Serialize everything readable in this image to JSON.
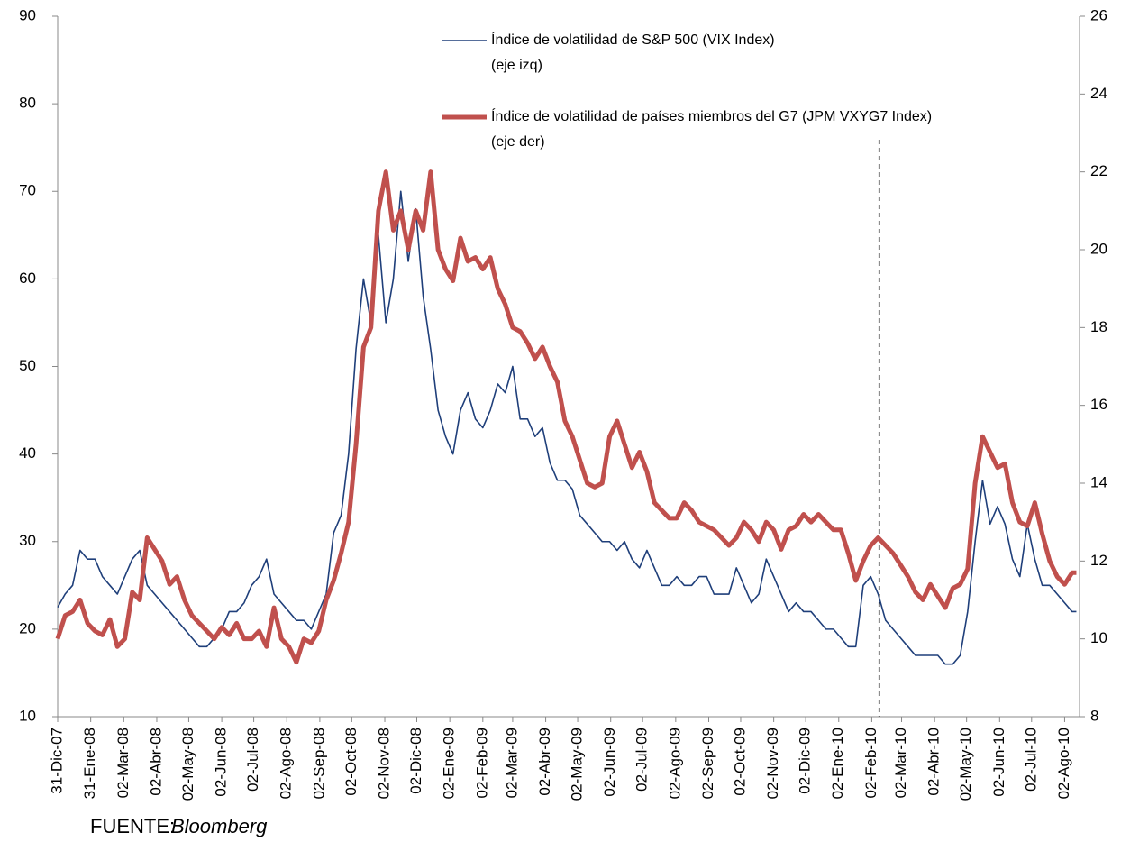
{
  "chart_data": {
    "type": "line",
    "x": [
      "2007-12-31",
      "2008-01-07",
      "2008-01-14",
      "2008-01-21",
      "2008-01-28",
      "2008-02-04",
      "2008-02-11",
      "2008-02-18",
      "2008-02-25",
      "2008-03-03",
      "2008-03-10",
      "2008-03-17",
      "2008-03-24",
      "2008-03-31",
      "2008-04-07",
      "2008-04-14",
      "2008-04-21",
      "2008-04-28",
      "2008-05-05",
      "2008-05-12",
      "2008-05-19",
      "2008-05-26",
      "2008-06-02",
      "2008-06-09",
      "2008-06-16",
      "2008-06-23",
      "2008-06-30",
      "2008-07-07",
      "2008-07-14",
      "2008-07-21",
      "2008-07-28",
      "2008-08-04",
      "2008-08-11",
      "2008-08-18",
      "2008-08-25",
      "2008-09-01",
      "2008-09-08",
      "2008-09-15",
      "2008-09-22",
      "2008-09-29",
      "2008-10-06",
      "2008-10-13",
      "2008-10-20",
      "2008-10-27",
      "2008-11-03",
      "2008-11-10",
      "2008-11-17",
      "2008-11-24",
      "2008-12-01",
      "2008-12-08",
      "2008-12-15",
      "2008-12-22",
      "2008-12-29",
      "2009-01-05",
      "2009-01-12",
      "2009-01-19",
      "2009-01-26",
      "2009-02-02",
      "2009-02-09",
      "2009-02-16",
      "2009-02-23",
      "2009-03-02",
      "2009-03-09",
      "2009-03-16",
      "2009-03-23",
      "2009-03-30",
      "2009-04-06",
      "2009-04-13",
      "2009-04-20",
      "2009-04-27",
      "2009-05-04",
      "2009-05-11",
      "2009-05-18",
      "2009-05-25",
      "2009-06-01",
      "2009-06-08",
      "2009-06-15",
      "2009-06-22",
      "2009-06-29",
      "2009-07-06",
      "2009-07-13",
      "2009-07-20",
      "2009-07-27",
      "2009-08-03",
      "2009-08-10",
      "2009-08-17",
      "2009-08-24",
      "2009-08-31",
      "2009-09-07",
      "2009-09-14",
      "2009-09-21",
      "2009-09-28",
      "2009-10-05",
      "2009-10-12",
      "2009-10-19",
      "2009-10-26",
      "2009-11-02",
      "2009-11-09",
      "2009-11-16",
      "2009-11-23",
      "2009-11-30",
      "2009-12-07",
      "2009-12-14",
      "2009-12-21",
      "2009-12-28",
      "2010-01-04",
      "2010-01-11",
      "2010-01-18",
      "2010-01-25",
      "2010-02-01",
      "2010-02-08",
      "2010-02-15",
      "2010-02-22",
      "2010-03-01",
      "2010-03-08",
      "2010-03-15",
      "2010-03-22",
      "2010-03-29",
      "2010-04-05",
      "2010-04-12",
      "2010-04-19",
      "2010-04-26",
      "2010-05-03",
      "2010-05-10",
      "2010-05-17",
      "2010-05-24",
      "2010-05-31",
      "2010-06-07",
      "2010-06-14",
      "2010-06-21",
      "2010-06-28",
      "2010-07-05",
      "2010-07-12",
      "2010-07-19",
      "2010-07-26",
      "2010-08-02",
      "2010-08-09",
      "2010-08-13"
    ],
    "series": [
      {
        "name": "Índice de volatilidad de S&P 500 (VIX Index)",
        "legend_note": "(eje izq)",
        "color": "#1f3f7a",
        "axis": "y",
        "values": [
          22.5,
          24,
          25,
          29,
          28,
          28,
          26,
          25,
          24,
          26,
          28,
          29,
          25,
          24,
          23,
          22,
          21,
          20,
          19,
          18,
          18,
          19,
          20,
          22,
          22,
          23,
          25,
          26,
          28,
          24,
          23,
          22,
          21,
          21,
          20,
          22,
          24,
          31,
          33,
          40,
          52,
          60,
          55,
          65,
          55,
          60,
          70,
          62,
          68,
          58,
          52,
          45,
          42,
          40,
          45,
          47,
          44,
          43,
          45,
          48,
          47,
          50,
          44,
          44,
          42,
          43,
          39,
          37,
          37,
          36,
          33,
          32,
          31,
          30,
          30,
          29,
          30,
          28,
          27,
          29,
          27,
          25,
          25,
          26,
          25,
          25,
          26,
          26,
          24,
          24,
          24,
          27,
          25,
          23,
          24,
          28,
          26,
          24,
          22,
          23,
          22,
          22,
          21,
          20,
          20,
          19,
          18,
          18,
          25,
          26,
          24,
          21,
          20,
          19,
          18,
          17,
          17,
          17,
          17,
          16,
          16,
          17,
          22,
          30,
          37,
          32,
          34,
          32,
          28,
          26,
          32,
          28,
          25,
          25,
          24,
          23,
          22,
          22
        ]
      },
      {
        "name": "Índice de volatilidad de países miembros del G7 (JPM VXYG7 Index)",
        "legend_note": "(eje der)",
        "color": "#c0504d",
        "axis": "y2",
        "values": [
          10.0,
          10.6,
          10.7,
          11.0,
          10.4,
          10.2,
          10.1,
          10.5,
          9.8,
          10.0,
          11.2,
          11.0,
          12.6,
          12.3,
          12.0,
          11.4,
          11.6,
          11.0,
          10.6,
          10.4,
          10.2,
          10.0,
          10.3,
          10.1,
          10.4,
          10.0,
          10.0,
          10.2,
          9.8,
          10.8,
          10.0,
          9.8,
          9.4,
          10.0,
          9.9,
          10.2,
          11.0,
          11.5,
          12.2,
          13.0,
          15.0,
          17.5,
          18.0,
          21.0,
          22.0,
          20.5,
          21.0,
          20.0,
          21.0,
          20.5,
          22.0,
          20.0,
          19.5,
          19.2,
          20.3,
          19.7,
          19.8,
          19.5,
          19.8,
          19.0,
          18.6,
          18.0,
          17.9,
          17.6,
          17.2,
          17.5,
          17.0,
          16.6,
          15.6,
          15.2,
          14.6,
          14.0,
          13.9,
          14.0,
          15.2,
          15.6,
          15.0,
          14.4,
          14.8,
          14.3,
          13.5,
          13.3,
          13.1,
          13.1,
          13.5,
          13.3,
          13.0,
          12.9,
          12.8,
          12.6,
          12.4,
          12.6,
          13.0,
          12.8,
          12.5,
          13.0,
          12.8,
          12.3,
          12.8,
          12.9,
          13.2,
          13.0,
          13.2,
          13.0,
          12.8,
          12.8,
          12.2,
          11.5,
          12.0,
          12.4,
          12.6,
          12.4,
          12.2,
          11.9,
          11.6,
          11.2,
          11.0,
          11.4,
          11.1,
          10.8,
          11.3,
          11.4,
          11.8,
          14.0,
          15.2,
          14.8,
          14.4,
          14.5,
          13.5,
          13.0,
          12.9,
          13.5,
          12.7,
          12.0,
          11.6,
          11.4,
          11.7,
          11.7
        ]
      }
    ],
    "xlim": [
      "2007-12-31",
      "2010-08-16"
    ],
    "xticks": [
      {
        "value": "2007-12-31",
        "label": "31-Dic-07"
      },
      {
        "value": "2008-01-31",
        "label": "31-Ene-08"
      },
      {
        "value": "2008-03-02",
        "label": "02-Mar-08"
      },
      {
        "value": "2008-04-02",
        "label": "02-Abr-08"
      },
      {
        "value": "2008-05-02",
        "label": "02-May-08"
      },
      {
        "value": "2008-06-02",
        "label": "02-Jun-08"
      },
      {
        "value": "2008-07-02",
        "label": "02-Jul-08"
      },
      {
        "value": "2008-08-02",
        "label": "02-Ago-08"
      },
      {
        "value": "2008-09-02",
        "label": "02-Sep-08"
      },
      {
        "value": "2008-10-02",
        "label": "02-Oct-08"
      },
      {
        "value": "2008-11-02",
        "label": "02-Nov-08"
      },
      {
        "value": "2008-12-02",
        "label": "02-Dic-08"
      },
      {
        "value": "2009-01-02",
        "label": "02-Ene-09"
      },
      {
        "value": "2009-02-02",
        "label": "02-Feb-09"
      },
      {
        "value": "2009-03-02",
        "label": "02-Mar-09"
      },
      {
        "value": "2009-04-02",
        "label": "02-Abr-09"
      },
      {
        "value": "2009-05-02",
        "label": "02-May-09"
      },
      {
        "value": "2009-06-02",
        "label": "02-Jun-09"
      },
      {
        "value": "2009-07-02",
        "label": "02-Jul-09"
      },
      {
        "value": "2009-08-02",
        "label": "02-Ago-09"
      },
      {
        "value": "2009-09-02",
        "label": "02-Sep-09"
      },
      {
        "value": "2009-10-02",
        "label": "02-Oct-09"
      },
      {
        "value": "2009-11-02",
        "label": "02-Nov-09"
      },
      {
        "value": "2009-12-02",
        "label": "02-Dic-09"
      },
      {
        "value": "2010-01-02",
        "label": "02-Ene-10"
      },
      {
        "value": "2010-02-02",
        "label": "02-Feb-10"
      },
      {
        "value": "2010-03-02",
        "label": "02-Mar-10"
      },
      {
        "value": "2010-04-02",
        "label": "02-Abr-10"
      },
      {
        "value": "2010-05-02",
        "label": "02-May-10"
      },
      {
        "value": "2010-06-02",
        "label": "02-Jun-10"
      },
      {
        "value": "2010-07-02",
        "label": "02-Jul-10"
      },
      {
        "value": "2010-08-02",
        "label": "02-Ago-10"
      }
    ],
    "ylim": [
      10,
      90
    ],
    "yticks": [
      10,
      20,
      30,
      40,
      50,
      60,
      70,
      80,
      90
    ],
    "y2lim": [
      8,
      26
    ],
    "y2ticks": [
      8,
      10,
      12,
      14,
      16,
      18,
      20,
      22,
      24,
      26
    ],
    "grid": false,
    "reference_line": {
      "x": "2010-02-09",
      "style": "dashed"
    },
    "source": {
      "label": "FUENTE:",
      "name": "Bloomberg"
    }
  }
}
